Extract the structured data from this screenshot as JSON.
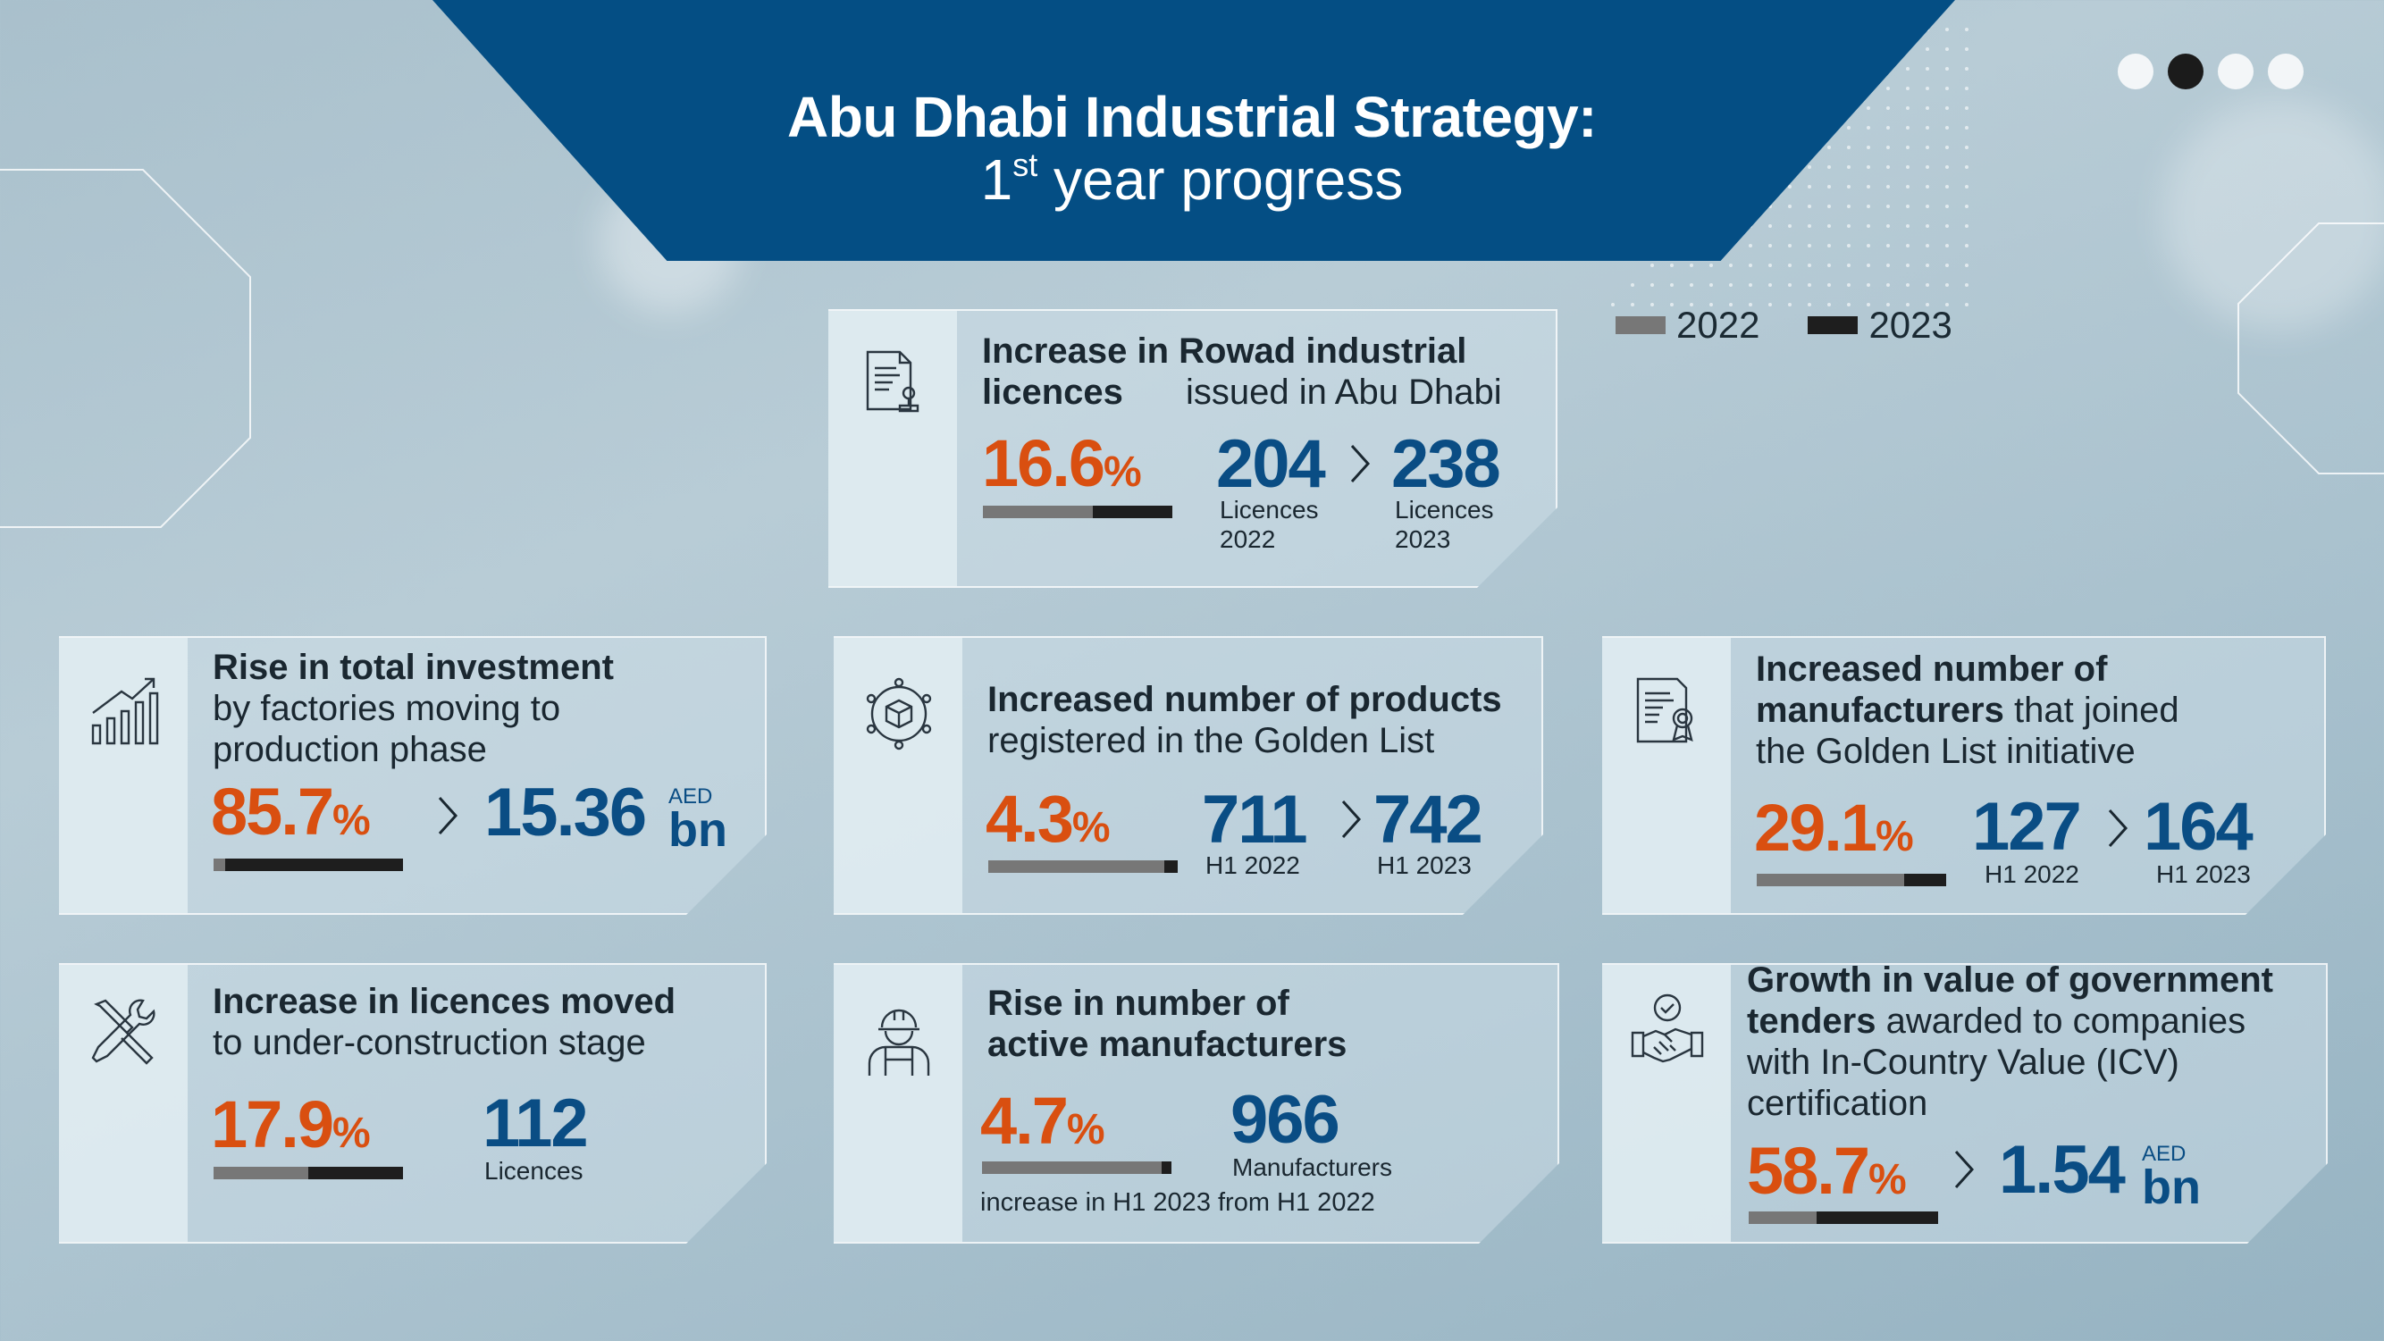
{
  "header": {
    "title": "Abu Dhabi Industrial Strategy:",
    "subtitle_ordinal_num": "1",
    "subtitle_ordinal_sup": "st",
    "subtitle_rest": " year progress"
  },
  "pagination": {
    "total": 4,
    "active_index": 1
  },
  "legend": [
    {
      "label": "2022",
      "color": "#777777"
    },
    {
      "label": "2023",
      "color": "#1e1e1e"
    }
  ],
  "colors": {
    "accent_orange": "#d94f10",
    "accent_blue": "#0a4d84",
    "header_blue": "#044e84"
  },
  "cards": {
    "rowad": {
      "icon": "document-stamp-icon",
      "title_bold": "Increase in Rowad industrial licences",
      "title_rest": " issued in Abu Dhabi",
      "pct": "16.6",
      "pct_sign": "%",
      "bar_fill": 0.58,
      "from_value": "204",
      "from_label_1": "Licences",
      "from_label_2": "2022",
      "to_value": "238",
      "to_label_1": "Licences",
      "to_label_2": "2023"
    },
    "investment": {
      "icon": "growth-chart-icon",
      "title_bold": "Rise in total investment",
      "title_rest_1": "by factories moving to",
      "title_rest_2": "production phase",
      "pct": "85.7",
      "pct_sign": "%",
      "bar_fill": 0.06,
      "value": "15.36",
      "unit_top": "AED",
      "unit_bottom": "bn"
    },
    "products": {
      "icon": "product-network-icon",
      "title_bold": "Increased number of products",
      "title_rest": "registered in the Golden List",
      "pct": "4.3",
      "pct_sign": "%",
      "bar_fill": 0.93,
      "from_value": "711",
      "from_label": "H1 2022",
      "to_value": "742",
      "to_label": "H1 2023"
    },
    "manufacturers_golden": {
      "icon": "certificate-icon",
      "title_bold_1": "Increased number of",
      "title_bold_2": "manufacturers",
      "title_rest_2": " that joined",
      "title_rest_3": "the Golden List initiative",
      "pct": "29.1",
      "pct_sign": "%",
      "bar_fill": 0.78,
      "from_value": "127",
      "from_label": "H1 2022",
      "to_value": "164",
      "to_label": "H1 2023"
    },
    "construction": {
      "icon": "tools-icon",
      "title_bold": "Increase in licences moved",
      "title_rest": "to under-construction stage",
      "pct": "17.9",
      "pct_sign": "%",
      "bar_fill": 0.5,
      "value": "112",
      "value_label": "Licences"
    },
    "active_manufacturers": {
      "icon": "worker-icon",
      "title_bold_1": "Rise in number of",
      "title_bold_2": "active manufacturers",
      "pct": "4.7",
      "pct_sign": "%",
      "bar_fill": 0.95,
      "value": "966",
      "value_label": "Manufacturers",
      "footnote": "increase in H1 2023 from H1 2022"
    },
    "tenders": {
      "icon": "handshake-icon",
      "title_bold_1": "Growth in value of government",
      "title_bold_2": "tenders",
      "title_rest_2": " awarded to companies",
      "title_rest_3": "with In-Country Value (ICV)",
      "title_rest_4": "certification",
      "pct": "58.7",
      "pct_sign": "%",
      "bar_fill": 0.36,
      "value": "1.54",
      "unit_top": "AED",
      "unit_bottom": "bn"
    }
  }
}
